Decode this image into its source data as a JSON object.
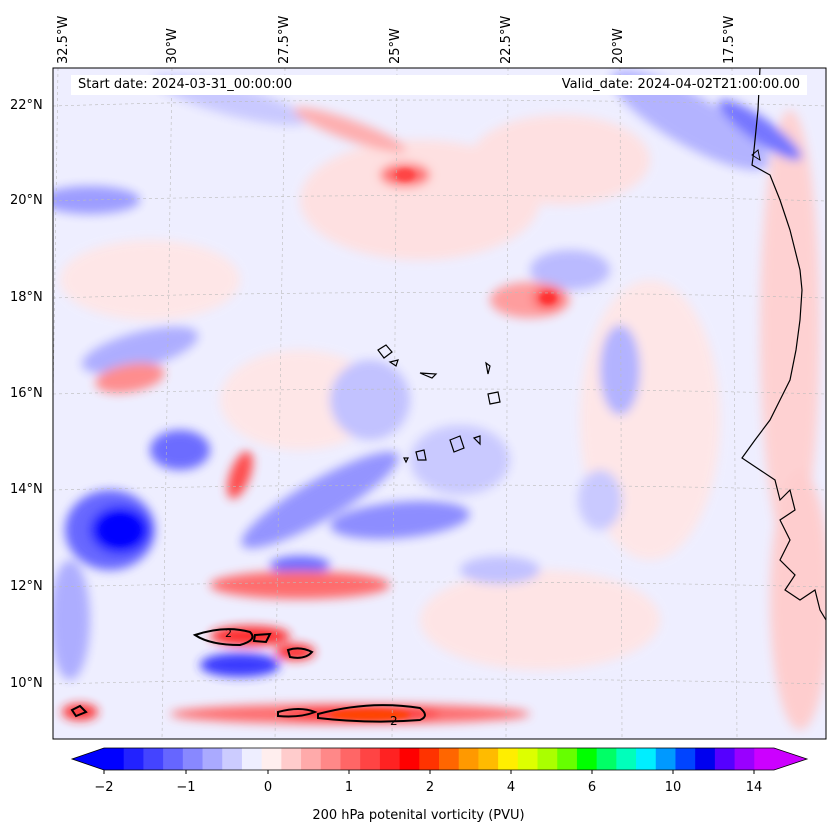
{
  "map": {
    "start_date": "Start date: 2024-03-31_00:00:00",
    "valid_date": "Valid_date: 2024-04-02T21:00:00.00",
    "longitude_labels": [
      "32.5°W",
      "30°W",
      "27.5°W",
      "25°W",
      "22.5°W",
      "20°W",
      "17.5°W"
    ],
    "latitude_labels": [
      "22°N",
      "20°N",
      "18°N",
      "16°N",
      "14°N",
      "12°N",
      "10°N"
    ],
    "contour_label": "2"
  },
  "colorbar": {
    "title": "200 hPa potenital vorticity (PVU)",
    "tick_labels": [
      "−2",
      "−1",
      "0",
      "1",
      "2",
      "4",
      "6",
      "10",
      "14"
    ],
    "colors": [
      "#0000ff",
      "#2222ff",
      "#4444ff",
      "#6666ff",
      "#8888ff",
      "#aaaaff",
      "#ccccff",
      "#eeeeff",
      "#ffeeee",
      "#ffcccc",
      "#ffaaaa",
      "#ff8888",
      "#ff6666",
      "#ff4444",
      "#ff2222",
      "#ff0000",
      "#ff3300",
      "#ff6600",
      "#ff9900",
      "#ffbb00",
      "#ffee00",
      "#ddff00",
      "#aaff00",
      "#66ff00",
      "#00ff00",
      "#00ff66",
      "#00ffbb",
      "#00eeff",
      "#0099ff",
      "#0044ff",
      "#0000ee",
      "#5500ff",
      "#9900ff",
      "#cc00ff"
    ]
  },
  "colors": {
    "land_outline": "#000000",
    "frame": "#000000"
  }
}
